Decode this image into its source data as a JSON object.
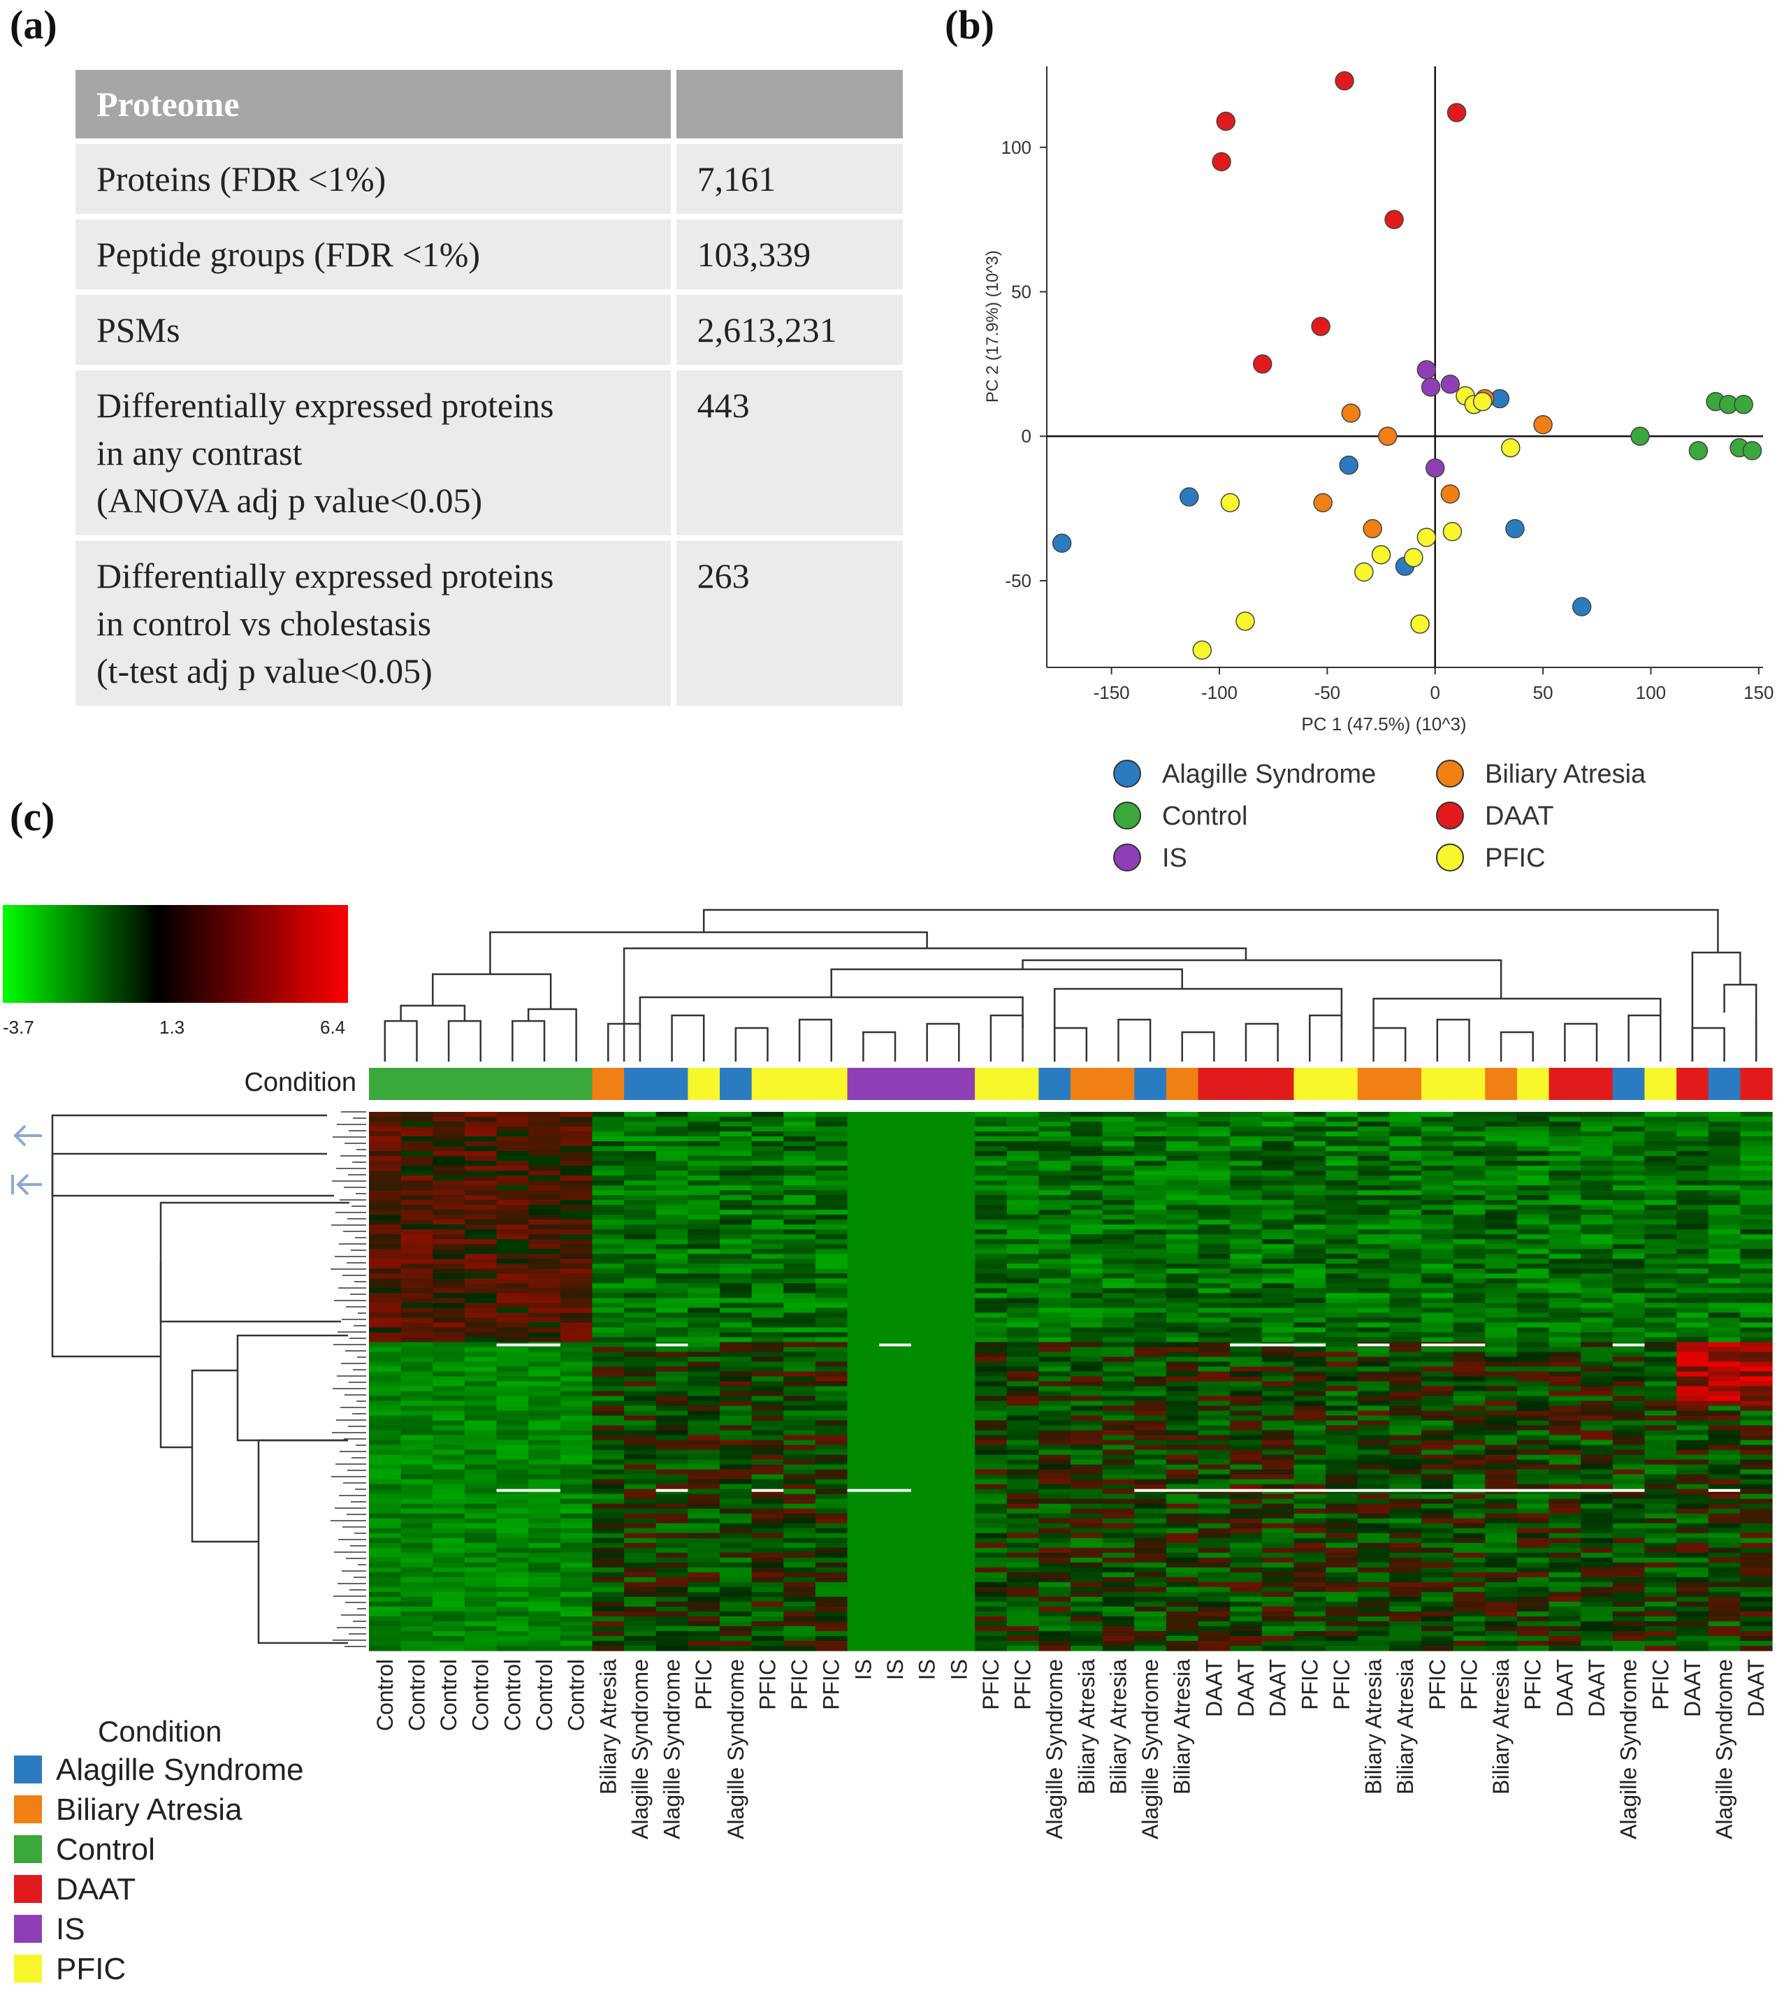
{
  "panels": {
    "a": "(a)",
    "b": "(b)",
    "c": "(c)"
  },
  "table": {
    "header": [
      "Proteome",
      ""
    ],
    "rows": [
      {
        "label": [
          "Proteins (FDR <1%)"
        ],
        "value": "7,161"
      },
      {
        "label": [
          "Peptide groups (FDR <1%)"
        ],
        "value": "103,339"
      },
      {
        "label": [
          "PSMs"
        ],
        "value": "2,613,231"
      },
      {
        "label": [
          "Differentially expressed proteins",
          "in any contrast",
          "(ANOVA adj p value<0.05)"
        ],
        "value": "443"
      },
      {
        "label": [
          "Differentially expressed proteins",
          "in control vs cholestasis",
          "(t-test adj p value<0.05)"
        ],
        "value": "263"
      }
    ]
  },
  "chart_data": [
    {
      "type": "scatter",
      "title": "",
      "xlabel": "PC 1 (47.5%) (10^3)",
      "ylabel": "PC 2 (17.9%) (10^3)",
      "xlim": [
        -180,
        152
      ],
      "ylim": [
        -80,
        128
      ],
      "xticks": [
        "-150",
        "-100",
        "-50",
        "0",
        "50",
        "100",
        "150"
      ],
      "xtick_values": [
        -150,
        -100,
        -50,
        0,
        50,
        100,
        150
      ],
      "yticks": [
        "100",
        "50",
        "0",
        "-50"
      ],
      "ytick_values": [
        100,
        50,
        0,
        -50
      ],
      "colors": {
        "Alagille Syndrome": "#2b7bc1",
        "Biliary Atresia": "#f07f14",
        "Control": "#3aa83a",
        "DAAT": "#e11b1b",
        "IS": "#8f3fb5",
        "PFIC": "#f7f72c"
      },
      "legend": [
        "Alagille Syndrome",
        "Biliary Atresia",
        "Control",
        "DAAT",
        "IS",
        "PFIC"
      ],
      "series": [
        {
          "name": "Alagille Syndrome",
          "points": [
            [
              -173,
              -37
            ],
            [
              -114,
              -21
            ],
            [
              -40,
              -10
            ],
            [
              -14,
              -45
            ],
            [
              30,
              13
            ],
            [
              37,
              -32
            ],
            [
              68,
              -59
            ]
          ]
        },
        {
          "name": "Biliary Atresia",
          "points": [
            [
              -39,
              8
            ],
            [
              -22,
              0
            ],
            [
              -52,
              -23
            ],
            [
              -29,
              -32
            ],
            [
              7,
              -20
            ],
            [
              23,
              13
            ],
            [
              50,
              4
            ]
          ]
        },
        {
          "name": "Control",
          "points": [
            [
              95,
              0
            ],
            [
              122,
              -5
            ],
            [
              130,
              12
            ],
            [
              136,
              11
            ],
            [
              143,
              11
            ],
            [
              141,
              -4
            ],
            [
              147,
              -5
            ]
          ]
        },
        {
          "name": "DAAT",
          "points": [
            [
              -42,
              123
            ],
            [
              10,
              112
            ],
            [
              -97,
              109
            ],
            [
              -99,
              95
            ],
            [
              -19,
              75
            ],
            [
              -53,
              38
            ],
            [
              -80,
              25
            ]
          ]
        },
        {
          "name": "IS",
          "points": [
            [
              -4,
              23
            ],
            [
              -2,
              17
            ],
            [
              7,
              18
            ],
            [
              0,
              -11
            ]
          ]
        },
        {
          "name": "PFIC",
          "points": [
            [
              14,
              14
            ],
            [
              18,
              11
            ],
            [
              22,
              12
            ],
            [
              35,
              -4
            ],
            [
              -95,
              -23
            ],
            [
              -108,
              -74
            ],
            [
              -88,
              -64
            ],
            [
              -7,
              -65
            ],
            [
              -33,
              -47
            ],
            [
              -25,
              -41
            ],
            [
              -10,
              -42
            ],
            [
              -4,
              -35
            ],
            [
              8,
              -33
            ]
          ]
        }
      ]
    },
    {
      "type": "heatmap",
      "colorscale": {
        "min": "-3.7",
        "mid": "1.3",
        "max": "6.4",
        "low_color": "#00ff00",
        "mid_color": "#000000",
        "high_color": "#ff0000"
      },
      "row_label": "Condition",
      "columns": [
        "Control",
        "Control",
        "Control",
        "Control",
        "Control",
        "Control",
        "Control",
        "Biliary Atresia",
        "Alagille Syndrome",
        "Alagille Syndrome",
        "PFIC",
        "Alagille Syndrome",
        "PFIC",
        "PFIC",
        "PFIC",
        "IS",
        "IS",
        "IS",
        "IS",
        "PFIC",
        "PFIC",
        "Alagille Syndrome",
        "Biliary Atresia",
        "Biliary Atresia",
        "Alagille Syndrome",
        "Biliary Atresia",
        "DAAT",
        "DAAT",
        "DAAT",
        "PFIC",
        "PFIC",
        "Biliary Atresia",
        "Biliary Atresia",
        "PFIC",
        "PFIC",
        "Biliary Atresia",
        "PFIC",
        "DAAT",
        "DAAT",
        "Alagille Syndrome",
        "PFIC",
        "DAAT",
        "Alagille Syndrome",
        "DAAT"
      ],
      "legend_title": "Condition",
      "legend": [
        "Alagille Syndrome",
        "Biliary Atresia",
        "Control",
        "DAAT",
        "IS",
        "PFIC"
      ]
    }
  ]
}
